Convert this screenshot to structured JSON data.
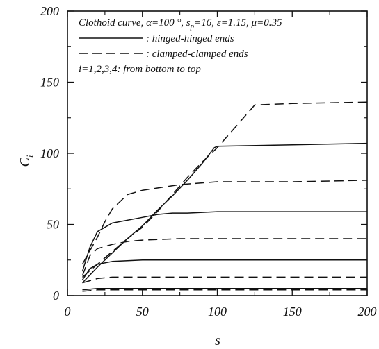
{
  "chart_data": {
    "type": "line",
    "xlabel": "s",
    "ylabel": "C",
    "ylabel_subscript": "i",
    "xlim": [
      0,
      200
    ],
    "ylim": [
      0,
      200
    ],
    "xticks": [
      0,
      50,
      100,
      150,
      200
    ],
    "yticks": [
      0,
      50,
      100,
      150,
      200
    ],
    "grid": false,
    "legend_placement": "top-left",
    "annotation_lines": [
      "Clothoid curve, α=100 °, s",
      ": hinged-hinged ends",
      ": clamped-clamped ends",
      "i=1,2,3,4: from bottom to top"
    ],
    "annotation_params": {
      "sp_sub": "p",
      "sp_value": "=16, ε=1.15, μ=0.35"
    },
    "series": [
      {
        "group": "hinged",
        "style": "solid",
        "x": [
          10,
          20,
          30,
          50,
          100,
          150,
          200
        ],
        "y": [
          4,
          5,
          5,
          5,
          5,
          5,
          5
        ]
      },
      {
        "group": "hinged",
        "style": "solid",
        "x": [
          10,
          15,
          20,
          30,
          50,
          100,
          150,
          200
        ],
        "y": [
          11,
          19,
          22,
          24,
          25,
          25,
          25,
          25
        ]
      },
      {
        "group": "hinged",
        "style": "solid",
        "x": [
          10,
          15,
          20,
          30,
          50,
          60,
          70,
          80,
          100,
          150,
          200
        ],
        "y": [
          17,
          34,
          45,
          51,
          55,
          57,
          58,
          58,
          59,
          59,
          59
        ]
      },
      {
        "group": "hinged",
        "style": "solid",
        "x": [
          10,
          20,
          30,
          40,
          50,
          60,
          70,
          80,
          90,
          98,
          100,
          150,
          200
        ],
        "y": [
          9,
          20,
          30,
          40,
          49,
          60,
          70,
          81,
          93,
          104,
          105,
          106,
          107
        ]
      },
      {
        "group": "clamped",
        "style": "dashed",
        "x": [
          10,
          20,
          30,
          50,
          100,
          150,
          200
        ],
        "y": [
          3,
          4,
          4,
          4,
          4,
          4,
          4
        ]
      },
      {
        "group": "clamped",
        "style": "dashed",
        "x": [
          10,
          20,
          30,
          50,
          100,
          150,
          200
        ],
        "y": [
          9,
          12,
          13,
          13,
          13,
          13,
          13
        ]
      },
      {
        "group": "clamped",
        "style": "dashed",
        "x": [
          10,
          15,
          20,
          30,
          40,
          50,
          75,
          100,
          150,
          200
        ],
        "y": [
          14,
          28,
          33,
          36,
          38,
          39,
          40,
          40,
          40,
          40
        ]
      },
      {
        "group": "clamped",
        "style": "dashed",
        "x": [
          10,
          20,
          25,
          30,
          40,
          50,
          75,
          100,
          150,
          200
        ],
        "y": [
          22,
          41,
          52,
          61,
          71,
          74,
          78,
          80,
          80,
          81
        ]
      },
      {
        "group": "clamped",
        "style": "dashed",
        "x": [
          10,
          20,
          30,
          40,
          50,
          60,
          70,
          80,
          90,
          100,
          110,
          120,
          125,
          150,
          200
        ],
        "y": [
          13,
          22,
          31,
          40,
          48,
          59,
          71,
          83,
          94,
          104,
          116,
          128,
          134,
          135,
          136
        ]
      }
    ]
  }
}
